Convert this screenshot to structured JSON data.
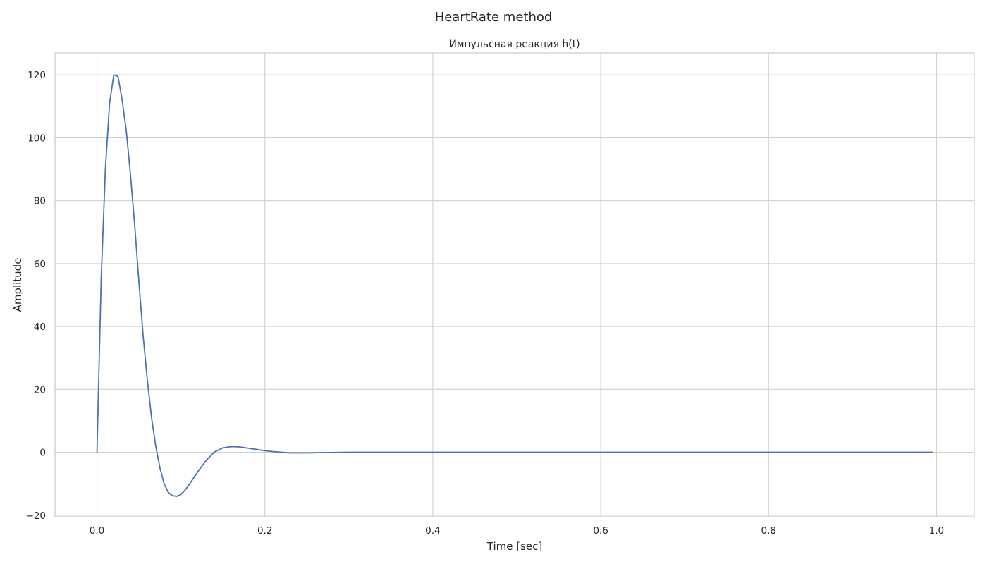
{
  "chart_data": {
    "type": "line",
    "suptitle": "HeartRate method",
    "title": "Импульсная реакция h(t)",
    "xlabel": "Time [sec]",
    "ylabel": "Amplitude",
    "xlim": [
      -0.05,
      1.045
    ],
    "ylim": [
      -20.5,
      127
    ],
    "xticks": [
      0.0,
      0.2,
      0.4,
      0.6,
      0.8,
      1.0
    ],
    "xtick_labels": [
      "0.0",
      "0.2",
      "0.4",
      "0.6",
      "0.8",
      "1.0"
    ],
    "yticks": [
      -20,
      0,
      20,
      40,
      60,
      80,
      100,
      120
    ],
    "ytick_labels": [
      "−20",
      "0",
      "20",
      "40",
      "60",
      "80",
      "100",
      "120"
    ],
    "grid": true,
    "series": [
      {
        "color": "#4c72b0",
        "x": [
          0.0,
          0.005,
          0.01,
          0.015,
          0.02,
          0.025,
          0.03,
          0.035,
          0.04,
          0.045,
          0.05,
          0.055,
          0.06,
          0.065,
          0.07,
          0.075,
          0.08,
          0.085,
          0.09,
          0.095,
          0.1,
          0.105,
          0.11,
          0.12,
          0.13,
          0.14,
          0.15,
          0.16,
          0.17,
          0.18,
          0.19,
          0.2,
          0.21,
          0.22,
          0.23,
          0.24,
          0.25,
          0.27,
          0.3,
          0.35,
          0.4,
          0.5,
          0.6,
          0.7,
          0.8,
          0.9,
          0.995
        ],
        "y": [
          0.0,
          55.0,
          90.0,
          111.0,
          120.0,
          119.5,
          112.0,
          102.0,
          88.0,
          72.0,
          54.0,
          37.0,
          23.0,
          11.0,
          2.0,
          -5.0,
          -10.0,
          -12.8,
          -13.8,
          -14.0,
          -13.4,
          -12.0,
          -10.2,
          -6.2,
          -2.6,
          0.1,
          1.4,
          1.8,
          1.7,
          1.3,
          0.9,
          0.5,
          0.2,
          0.0,
          -0.2,
          -0.2,
          -0.2,
          -0.1,
          0.0,
          0.0,
          0.0,
          0.0,
          0.0,
          0.0,
          0.0,
          0.0,
          0.0
        ]
      }
    ]
  }
}
